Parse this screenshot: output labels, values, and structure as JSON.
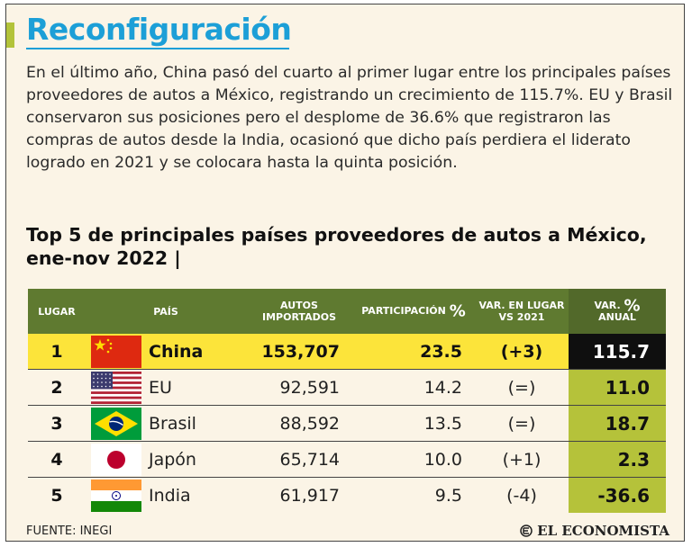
{
  "header": {
    "title": "Reconfiguración",
    "intro": "En el último año, China pasó del cuarto al primer lugar entre los principales países proveedores de autos a México, registrando un crecimiento de 115.7%. EU y Brasil conservaron sus posiciones pero el desplome de 36.6% que registraron las compras de autos desde la India, ocasionó que dicho país perdiera el liderato logrado en 2021 y se colocara hasta la quinta posición.",
    "subtitle": "Top 5 de principales países proveedores de autos a México, ene-nov 2022 |"
  },
  "chart_data": {
    "type": "table",
    "title": "Top 5 de principales países proveedores de autos a México, ene-nov 2022",
    "columns": {
      "lugar": "LUGAR",
      "pais": "PAÍS",
      "autos_1": "AUTOS",
      "autos_2": "IMPORTADOS",
      "participacion": "PARTICIPACIÓN",
      "pct_sign": "%",
      "var_lugar_1": "VAR. EN LUGAR",
      "var_lugar_2": "VS 2021",
      "var_anual_1": "VAR.",
      "var_anual_2": "ANUAL"
    },
    "rows": [
      {
        "rank": "1",
        "country": "China",
        "flag": "china-flag",
        "autos": "153,707",
        "participacion": "23.5",
        "var_lugar": "(+3)",
        "var_anual": "115.7",
        "highlight": true
      },
      {
        "rank": "2",
        "country": "EU",
        "flag": "usa-flag",
        "autos": "92,591",
        "participacion": "14.2",
        "var_lugar": "(=)",
        "var_anual": "11.0",
        "highlight": false
      },
      {
        "rank": "3",
        "country": "Brasil",
        "flag": "brazil-flag",
        "autos": "88,592",
        "participacion": "13.5",
        "var_lugar": "(=)",
        "var_anual": "18.7",
        "highlight": false
      },
      {
        "rank": "4",
        "country": "Japón",
        "flag": "japan-flag",
        "autos": "65,714",
        "participacion": "10.0",
        "var_lugar": "(+1)",
        "var_anual": "2.3",
        "highlight": false
      },
      {
        "rank": "5",
        "country": "India",
        "flag": "india-flag",
        "autos": "61,917",
        "participacion": "9.5",
        "var_lugar": "(-4)",
        "var_anual": "-36.6",
        "highlight": false
      }
    ]
  },
  "footer": {
    "source": "FUENTE: INEGI",
    "brand": "EL ECONOMISTA"
  },
  "colors": {
    "title_blue": "#1c9fd7",
    "header_green": "#5f7a30",
    "highlight_yellow": "#fce43a",
    "anual_green": "#b5c23a",
    "background": "#fbf4e6"
  }
}
